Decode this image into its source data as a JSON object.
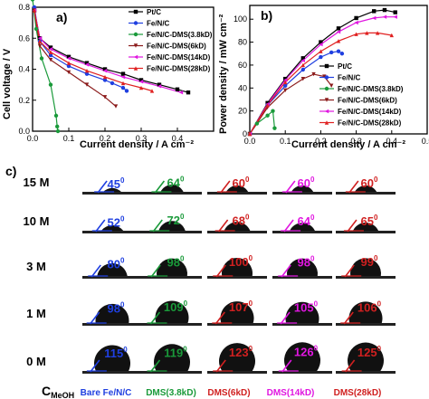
{
  "panel_labels": {
    "a": "a)",
    "b": "b)",
    "c": "c)"
  },
  "chart_data": [
    {
      "id": "a",
      "type": "line",
      "xlabel": "Current density / A cm⁻²",
      "ylabel": "Cell voltage / V",
      "xlim": [
        0,
        0.5
      ],
      "ylim": [
        0,
        0.8
      ],
      "xticks": [
        "0.0",
        "0.1",
        "0.2",
        "0.3",
        "0.4"
      ],
      "xtick_values": [
        0,
        0.1,
        0.2,
        0.3,
        0.4
      ],
      "yticks": [
        "0.0",
        "0.2",
        "0.4",
        "0.6",
        "0.8"
      ],
      "ytick_values": [
        0,
        0.2,
        0.4,
        0.6,
        0.8
      ],
      "legend_position": "top-right",
      "series": [
        {
          "name": "Pt/C",
          "color": "#000000",
          "marker": "square",
          "x": [
            0.005,
            0.02,
            0.05,
            0.1,
            0.15,
            0.2,
            0.25,
            0.3,
            0.35,
            0.4,
            0.43
          ],
          "y": [
            0.78,
            0.6,
            0.54,
            0.48,
            0.44,
            0.4,
            0.37,
            0.33,
            0.3,
            0.27,
            0.25
          ]
        },
        {
          "name": "Fe/N/C",
          "color": "#1f3fe0",
          "marker": "circle",
          "x": [
            0.005,
            0.02,
            0.05,
            0.1,
            0.15,
            0.2,
            0.22,
            0.25,
            0.26
          ],
          "y": [
            0.8,
            0.58,
            0.49,
            0.42,
            0.37,
            0.33,
            0.31,
            0.28,
            0.26
          ]
        },
        {
          "name": "Fe/N/C-DMS(3.8kD)",
          "color": "#1a9a3a",
          "marker": "circle",
          "x": [
            0.0,
            0.01,
            0.025,
            0.05,
            0.065,
            0.068,
            0.07
          ],
          "y": [
            0.85,
            0.66,
            0.47,
            0.3,
            0.1,
            0.03,
            0.0
          ]
        },
        {
          "name": "Fe/N/C-DMS(6kD)",
          "color": "#8b1a1a",
          "marker": "triangle-down",
          "x": [
            0.005,
            0.02,
            0.05,
            0.1,
            0.15,
            0.2,
            0.23
          ],
          "y": [
            0.78,
            0.55,
            0.46,
            0.38,
            0.3,
            0.22,
            0.16
          ]
        },
        {
          "name": "Fe/N/C-DMS(14kD)",
          "color": "#e016e0",
          "marker": "triangle-left",
          "x": [
            0.005,
            0.02,
            0.05,
            0.1,
            0.15,
            0.2,
            0.25,
            0.3,
            0.35,
            0.41
          ],
          "y": [
            0.78,
            0.6,
            0.53,
            0.47,
            0.43,
            0.39,
            0.35,
            0.32,
            0.29,
            0.25
          ]
        },
        {
          "name": "Fe/N/C-DMS(28kD)",
          "color": "#e02020",
          "marker": "triangle-up",
          "x": [
            0.005,
            0.02,
            0.05,
            0.1,
            0.15,
            0.2,
            0.25,
            0.3,
            0.33
          ],
          "y": [
            0.78,
            0.58,
            0.51,
            0.44,
            0.39,
            0.35,
            0.31,
            0.28,
            0.26
          ]
        }
      ]
    },
    {
      "id": "b",
      "type": "line",
      "xlabel": "Current density / A cm⁻²",
      "ylabel": "Power density / mW cm⁻²",
      "xlim": [
        0,
        0.5
      ],
      "ylim": [
        0,
        112
      ],
      "xticks": [
        "0.0",
        "0.1",
        "0.2",
        "0.3",
        "0.4",
        "0.5"
      ],
      "xtick_values": [
        0,
        0.1,
        0.2,
        0.3,
        0.4,
        0.5
      ],
      "yticks": [
        "0",
        "20",
        "40",
        "60",
        "80",
        "100"
      ],
      "ytick_values": [
        0,
        20,
        40,
        60,
        80,
        100
      ],
      "legend_position": "bottom-right",
      "series": [
        {
          "name": "Pt/C",
          "color": "#000000",
          "marker": "square",
          "x": [
            0.0,
            0.05,
            0.1,
            0.15,
            0.2,
            0.25,
            0.3,
            0.35,
            0.38,
            0.41
          ],
          "y": [
            0,
            27,
            48,
            66,
            80,
            92,
            101,
            107,
            108,
            106
          ]
        },
        {
          "name": "Fe/N/C",
          "color": "#1f3fe0",
          "marker": "circle",
          "x": [
            0.0,
            0.05,
            0.1,
            0.15,
            0.2,
            0.23,
            0.25,
            0.26
          ],
          "y": [
            0,
            25,
            42,
            56,
            67,
            71,
            72,
            70
          ]
        },
        {
          "name": "Fe/N/C-DMS(3.8kD)",
          "color": "#1a9a3a",
          "marker": "circle",
          "x": [
            0.0,
            0.02,
            0.05,
            0.065,
            0.07
          ],
          "y": [
            0,
            9,
            16,
            20,
            5
          ]
        },
        {
          "name": "Fe/N/C-DMS(6kD)",
          "color": "#8b1a1a",
          "marker": "triangle-down",
          "x": [
            0.0,
            0.05,
            0.1,
            0.15,
            0.18,
            0.21,
            0.23
          ],
          "y": [
            0,
            23,
            38,
            48,
            52,
            50,
            42
          ]
        },
        {
          "name": "Fe/N/C-DMS(14kD)",
          "color": "#e016e0",
          "marker": "triangle-left",
          "x": [
            0.0,
            0.05,
            0.1,
            0.15,
            0.2,
            0.25,
            0.3,
            0.35,
            0.38,
            0.41
          ],
          "y": [
            0,
            26,
            47,
            64,
            78,
            89,
            97,
            101,
            102,
            102
          ]
        },
        {
          "name": "Fe/N/C-DMS(28kD)",
          "color": "#e02020",
          "marker": "triangle-up",
          "x": [
            0.0,
            0.05,
            0.1,
            0.15,
            0.2,
            0.25,
            0.3,
            0.33,
            0.36,
            0.4
          ],
          "y": [
            0,
            25,
            45,
            60,
            72,
            81,
            87,
            88,
            88,
            86
          ]
        }
      ]
    }
  ],
  "contact_angles": {
    "row_label_prefix": "C",
    "row_label_subscript": "MeOH",
    "rows": [
      "15 M",
      "10 M",
      "3 M",
      "1 M",
      "0 M"
    ],
    "columns": [
      {
        "label": "Bare Fe/N/C",
        "color": "#1f3fe0"
      },
      {
        "label": "DMS(3.8kD)",
        "color": "#1a9a3a"
      },
      {
        "label": "DMS(6kD)",
        "color": "#d02020"
      },
      {
        "label": "DMS(14kD)",
        "color": "#e016e0"
      },
      {
        "label": "DMS(28kD)",
        "color": "#d02020"
      }
    ],
    "angles": [
      [
        45,
        64,
        60,
        60,
        60
      ],
      [
        52,
        72,
        68,
        64,
        65
      ],
      [
        80,
        98,
        100,
        98,
        99
      ],
      [
        98,
        109,
        107,
        105,
        106
      ],
      [
        115,
        119,
        123,
        126,
        125
      ]
    ]
  }
}
